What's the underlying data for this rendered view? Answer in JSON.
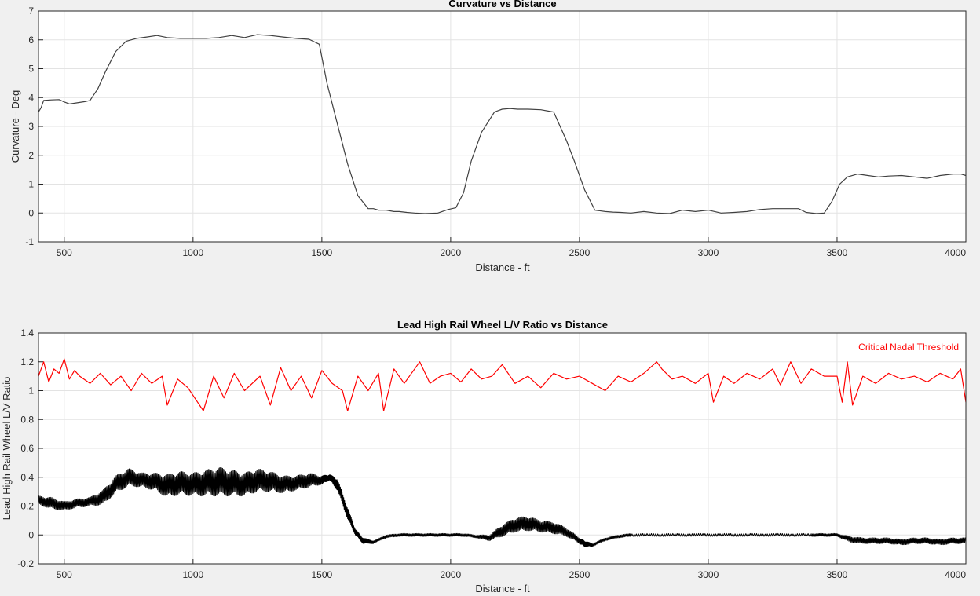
{
  "chart_data": [
    {
      "type": "line",
      "title": "Curvature vs Distance",
      "xlabel": "Distance - ft",
      "ylabel": "Curvature - Deg",
      "xlim": [
        400,
        4000
      ],
      "ylim": [
        -1,
        7
      ],
      "xticks": [
        500,
        1000,
        1500,
        2000,
        2500,
        3000,
        3500,
        4000
      ],
      "yticks": [
        -1,
        0,
        1,
        2,
        3,
        4,
        5,
        6,
        7
      ],
      "grid": true,
      "series": [
        {
          "color": "#404040",
          "x": [
            400,
            410,
            420,
            450,
            480,
            500,
            520,
            550,
            580,
            600,
            630,
            660,
            700,
            740,
            780,
            820,
            860,
            900,
            950,
            1000,
            1050,
            1100,
            1150,
            1200,
            1250,
            1300,
            1350,
            1400,
            1450,
            1490,
            1520,
            1560,
            1600,
            1640,
            1680,
            1700,
            1720,
            1750,
            1780,
            1800,
            1830,
            1860,
            1900,
            1950,
            1990,
            2020,
            2050,
            2080,
            2120,
            2170,
            2200,
            2230,
            2260,
            2300,
            2350,
            2400,
            2450,
            2480,
            2520,
            2560,
            2600,
            2630,
            2660,
            2700,
            2750,
            2800,
            2850,
            2900,
            2950,
            3000,
            3050,
            3100,
            3150,
            3200,
            3250,
            3300,
            3350,
            3380,
            3420,
            3450,
            3480,
            3510,
            3540,
            3580,
            3620,
            3660,
            3700,
            3750,
            3800,
            3850,
            3900,
            3950,
            3980,
            4000
          ],
          "y": [
            3.5,
            3.65,
            3.9,
            3.92,
            3.93,
            3.85,
            3.78,
            3.82,
            3.86,
            3.9,
            4.3,
            4.9,
            5.6,
            5.95,
            6.05,
            6.1,
            6.15,
            6.08,
            6.05,
            6.05,
            6.05,
            6.08,
            6.15,
            6.08,
            6.18,
            6.15,
            6.1,
            6.05,
            6.02,
            5.85,
            4.5,
            3.1,
            1.7,
            0.6,
            0.15,
            0.15,
            0.1,
            0.1,
            0.05,
            0.05,
            0.02,
            0.0,
            -0.02,
            0.0,
            0.12,
            0.18,
            0.7,
            1.8,
            2.8,
            3.5,
            3.6,
            3.62,
            3.6,
            3.6,
            3.58,
            3.5,
            2.5,
            1.8,
            0.8,
            0.1,
            0.05,
            0.03,
            0.02,
            0.0,
            0.05,
            0.0,
            -0.02,
            0.1,
            0.05,
            0.1,
            0.0,
            0.02,
            0.05,
            0.12,
            0.15,
            0.15,
            0.15,
            0.02,
            -0.02,
            0.0,
            0.4,
            1.0,
            1.25,
            1.35,
            1.3,
            1.25,
            1.28,
            1.3,
            1.25,
            1.2,
            1.3,
            1.35,
            1.35,
            1.3
          ]
        }
      ]
    },
    {
      "type": "line",
      "title": "Lead High Rail Wheel L/V Ratio vs Distance",
      "xlabel": "Distance - ft",
      "ylabel": "Lead High Rail Wheel L/V Ratio",
      "xlim": [
        400,
        4000
      ],
      "ylim": [
        -0.2,
        1.4
      ],
      "xticks": [
        500,
        1000,
        1500,
        2000,
        2500,
        3000,
        3500,
        4000
      ],
      "yticks": [
        -0.2,
        0,
        0.2,
        0.4,
        0.6,
        0.8,
        1,
        1.2,
        1.4
      ],
      "grid": true,
      "legend": {
        "location": "top-right",
        "entries": [
          "Critical Nadal Threshold"
        ]
      },
      "series": [
        {
          "name": "Critical Nadal Threshold",
          "color": "#ff0000",
          "x": [
            400,
            420,
            440,
            460,
            480,
            500,
            520,
            540,
            560,
            600,
            640,
            680,
            720,
            760,
            800,
            840,
            880,
            900,
            940,
            980,
            1040,
            1080,
            1120,
            1160,
            1200,
            1260,
            1300,
            1340,
            1380,
            1420,
            1460,
            1500,
            1540,
            1580,
            1600,
            1640,
            1680,
            1720,
            1740,
            1780,
            1820,
            1880,
            1920,
            1960,
            2000,
            2040,
            2080,
            2120,
            2160,
            2200,
            2250,
            2300,
            2350,
            2400,
            2450,
            2500,
            2550,
            2600,
            2650,
            2700,
            2750,
            2800,
            2820,
            2860,
            2900,
            2950,
            3000,
            3020,
            3060,
            3100,
            3150,
            3200,
            3250,
            3280,
            3320,
            3360,
            3400,
            3450,
            3500,
            3520,
            3540,
            3560,
            3600,
            3650,
            3700,
            3750,
            3800,
            3850,
            3900,
            3950,
            3980,
            4000
          ],
          "y": [
            1.1,
            1.2,
            1.06,
            1.15,
            1.12,
            1.22,
            1.08,
            1.14,
            1.1,
            1.05,
            1.12,
            1.04,
            1.1,
            1.0,
            1.12,
            1.05,
            1.1,
            0.9,
            1.08,
            1.02,
            0.86,
            1.1,
            0.95,
            1.12,
            1.0,
            1.1,
            0.9,
            1.16,
            1.0,
            1.1,
            0.95,
            1.14,
            1.05,
            1.0,
            0.86,
            1.1,
            1.0,
            1.12,
            0.86,
            1.15,
            1.05,
            1.2,
            1.05,
            1.1,
            1.12,
            1.06,
            1.15,
            1.08,
            1.1,
            1.18,
            1.05,
            1.1,
            1.02,
            1.12,
            1.08,
            1.1,
            1.05,
            1.0,
            1.1,
            1.06,
            1.12,
            1.2,
            1.15,
            1.08,
            1.1,
            1.05,
            1.12,
            0.92,
            1.1,
            1.05,
            1.12,
            1.08,
            1.15,
            1.04,
            1.2,
            1.05,
            1.15,
            1.1,
            1.1,
            0.92,
            1.2,
            0.9,
            1.1,
            1.05,
            1.12,
            1.08,
            1.1,
            1.06,
            1.12,
            1.08,
            1.15,
            0.92
          ]
        },
        {
          "color": "#000000",
          "x": [
            400,
            450,
            500,
            550,
            600,
            650,
            700,
            750,
            800,
            850,
            900,
            950,
            1000,
            1050,
            1100,
            1150,
            1200,
            1250,
            1300,
            1350,
            1400,
            1450,
            1500,
            1530,
            1560,
            1600,
            1630,
            1660,
            1700,
            1750,
            1800,
            1850,
            1900,
            1950,
            2000,
            2050,
            2100,
            2150,
            2200,
            2250,
            2300,
            2350,
            2400,
            2450,
            2500,
            2520,
            2550,
            2600,
            2650,
            2700,
            2800,
            2900,
            3000,
            3100,
            3200,
            3300,
            3400,
            3450,
            3500,
            3550,
            3600,
            3650,
            3700,
            3750,
            3800,
            3850,
            3900,
            3950,
            4000
          ],
          "y": [
            0.24,
            0.22,
            0.2,
            0.22,
            0.23,
            0.26,
            0.35,
            0.4,
            0.38,
            0.37,
            0.34,
            0.36,
            0.35,
            0.36,
            0.37,
            0.36,
            0.35,
            0.38,
            0.37,
            0.35,
            0.36,
            0.38,
            0.38,
            0.4,
            0.35,
            0.15,
            0.02,
            -0.04,
            -0.05,
            -0.01,
            0.0,
            0.0,
            0.0,
            0.0,
            0.0,
            0.0,
            -0.01,
            -0.02,
            0.03,
            0.07,
            0.08,
            0.06,
            0.05,
            0.02,
            -0.04,
            -0.06,
            -0.07,
            -0.03,
            -0.01,
            0.0,
            0.0,
            0.0,
            0.0,
            0.0,
            0.0,
            0.0,
            0.0,
            0.0,
            0.0,
            -0.03,
            -0.04,
            -0.04,
            -0.04,
            -0.05,
            -0.04,
            -0.04,
            -0.05,
            -0.04,
            -0.04
          ],
          "noise": [
            0.03,
            0.04,
            0.03,
            0.03,
            0.03,
            0.05,
            0.06,
            0.06,
            0.05,
            0.06,
            0.08,
            0.08,
            0.08,
            0.09,
            0.1,
            0.09,
            0.08,
            0.08,
            0.07,
            0.06,
            0.05,
            0.05,
            0.03,
            0.02,
            0.04,
            0.04,
            0.02,
            0.02,
            0.01,
            0.01,
            0.01,
            0.01,
            0.01,
            0.01,
            0.01,
            0.01,
            0.01,
            0.02,
            0.04,
            0.05,
            0.05,
            0.04,
            0.04,
            0.03,
            0.02,
            0.02,
            0.01,
            0.01,
            0.01,
            0.01,
            0.01,
            0.01,
            0.01,
            0.01,
            0.01,
            0.01,
            0.01,
            0.01,
            0.01,
            0.02,
            0.02,
            0.02,
            0.02,
            0.02,
            0.02,
            0.02,
            0.02,
            0.02,
            0.02
          ]
        }
      ]
    }
  ]
}
